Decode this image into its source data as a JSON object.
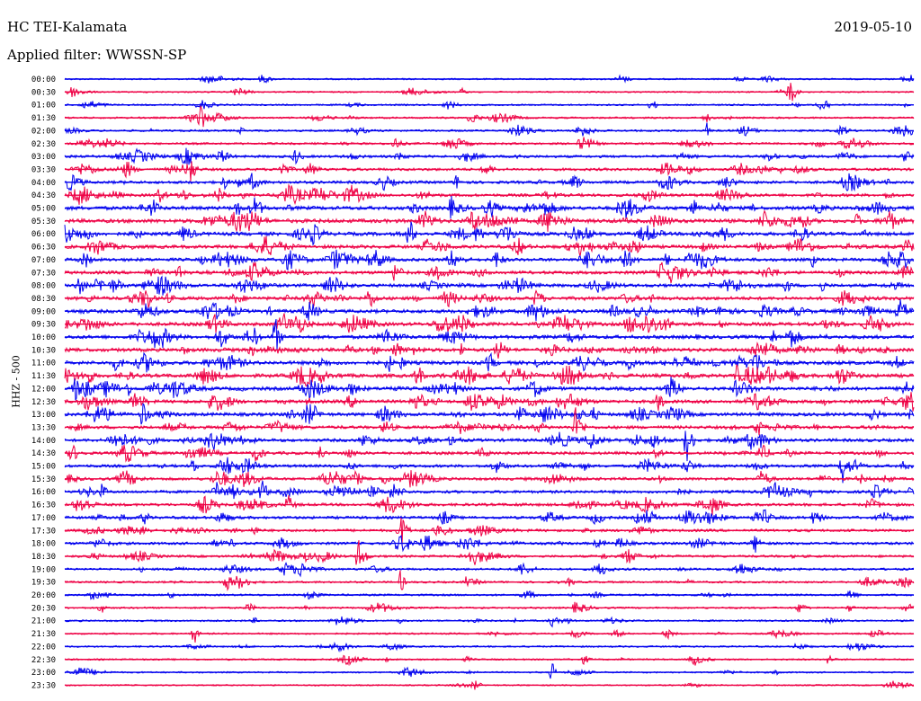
{
  "header": {
    "station": "HC TEI-Kalamata",
    "date": "2019-05-10",
    "filter": "Applied filter: WWSSN-SP",
    "channel": "HHZ - 500"
  },
  "colors": {
    "even": "#0000ee",
    "odd": "#ee0044"
  },
  "chart_data": {
    "type": "line",
    "title": "HC TEI-Kalamata",
    "subtitle": "Applied filter: WWSSN-SP",
    "ylabel": "HHZ - 500",
    "xlabel": "",
    "grid": false,
    "rows": [
      "00:00",
      "00:30",
      "01:00",
      "01:30",
      "02:00",
      "02:30",
      "03:00",
      "03:30",
      "04:00",
      "04:30",
      "05:00",
      "05:30",
      "06:00",
      "06:30",
      "07:00",
      "07:30",
      "08:00",
      "08:30",
      "09:00",
      "09:30",
      "10:00",
      "10:30",
      "11:00",
      "11:30",
      "12:00",
      "12:30",
      "13:00",
      "13:30",
      "14:00",
      "14:30",
      "15:00",
      "15:30",
      "16:00",
      "16:30",
      "17:00",
      "17:30",
      "18:00",
      "18:30",
      "19:00",
      "19:30",
      "20:00",
      "20:30",
      "21:00",
      "21:30",
      "22:00",
      "22:30",
      "23:00",
      "23:30"
    ],
    "activity": [
      0.15,
      0.12,
      0.2,
      0.25,
      0.3,
      0.35,
      0.5,
      0.55,
      0.6,
      0.65,
      0.9,
      0.95,
      0.85,
      0.8,
      0.75,
      0.75,
      0.75,
      0.8,
      0.85,
      0.85,
      0.85,
      0.85,
      0.9,
      0.9,
      0.85,
      0.8,
      0.8,
      0.7,
      0.7,
      0.65,
      0.6,
      0.6,
      0.6,
      0.6,
      0.6,
      0.55,
      0.55,
      0.45,
      0.4,
      0.3,
      0.3,
      0.25,
      0.25,
      0.2,
      0.2,
      0.2,
      0.15,
      0.1
    ]
  }
}
